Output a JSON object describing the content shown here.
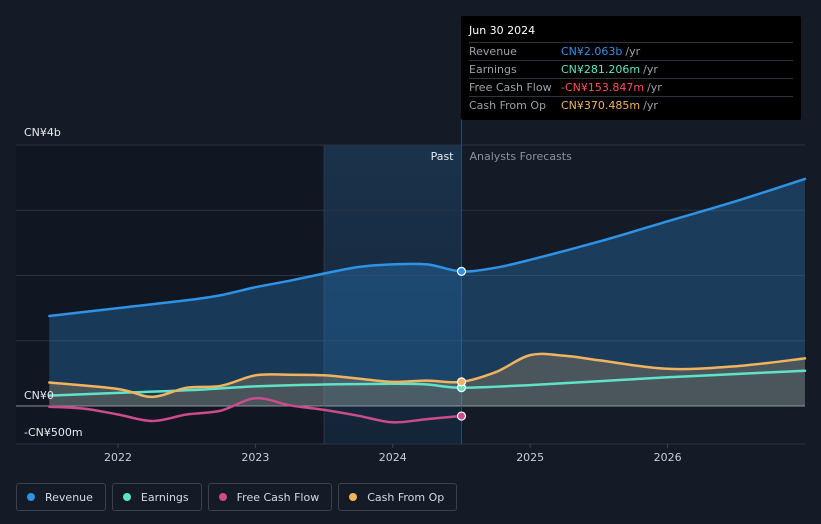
{
  "tooltip": {
    "date": "Jun 30 2024",
    "rows": [
      {
        "name": "Revenue",
        "value": "CN¥2.063b",
        "unit": "/yr",
        "color": "#2e92e6"
      },
      {
        "name": "Earnings",
        "value": "CN¥281.206m",
        "unit": "/yr",
        "color": "#5ee3c9"
      },
      {
        "name": "Free Cash Flow",
        "value": "-CN¥153.847m",
        "unit": "/yr",
        "color": "#ff4d5a"
      },
      {
        "name": "Cash From Op",
        "value": "CN¥370.485m",
        "unit": "/yr",
        "color": "#f0b45f"
      }
    ]
  },
  "legend": [
    {
      "label": "Revenue",
      "color": "#2e92e6"
    },
    {
      "label": "Earnings",
      "color": "#5ee3c9"
    },
    {
      "label": "Free Cash Flow",
      "color": "#cc4b8c"
    },
    {
      "label": "Cash From Op",
      "color": "#f0b45f"
    }
  ],
  "chart_data": {
    "type": "line",
    "y_unit": "CN¥ (millions)",
    "ylim": [
      -500,
      4000
    ],
    "y_tick_labels": [
      {
        "value": 4000,
        "label": "CN¥4b"
      },
      {
        "value": 0,
        "label": "CN¥0"
      },
      {
        "value": -500,
        "label": "-CN¥500m"
      }
    ],
    "gridlines": [
      4000,
      3000,
      2000,
      1000,
      0
    ],
    "xlim": [
      2021.5,
      2027.0
    ],
    "x_ticks": [
      {
        "value": 2022,
        "label": "2022"
      },
      {
        "value": 2023,
        "label": "2023"
      },
      {
        "value": 2024,
        "label": "2024"
      },
      {
        "value": 2025,
        "label": "2025"
      },
      {
        "value": 2026,
        "label": "2026"
      }
    ],
    "divider_x": 2024.5,
    "past_highlight_start": 2023.5,
    "past_label": "Past",
    "forecast_label": "Analysts Forecasts",
    "series": [
      {
        "name": "Revenue",
        "color": "#2e92e6",
        "fill": true,
        "points": [
          [
            2021.5,
            1380
          ],
          [
            2022.0,
            1500
          ],
          [
            2022.5,
            1620
          ],
          [
            2022.75,
            1700
          ],
          [
            2023.0,
            1820
          ],
          [
            2023.25,
            1920
          ],
          [
            2023.5,
            2030
          ],
          [
            2023.75,
            2130
          ],
          [
            2024.0,
            2170
          ],
          [
            2024.25,
            2170
          ],
          [
            2024.5,
            2063
          ],
          [
            2024.75,
            2120
          ],
          [
            2025.0,
            2240
          ],
          [
            2025.5,
            2520
          ],
          [
            2026.0,
            2830
          ],
          [
            2026.5,
            3140
          ],
          [
            2027.0,
            3480
          ]
        ]
      },
      {
        "name": "Earnings",
        "color": "#5ee3c9",
        "points": [
          [
            2021.5,
            160
          ],
          [
            2022.0,
            200
          ],
          [
            2022.5,
            240
          ],
          [
            2023.0,
            300
          ],
          [
            2023.5,
            330
          ],
          [
            2024.0,
            340
          ],
          [
            2024.25,
            330
          ],
          [
            2024.5,
            281
          ],
          [
            2025.0,
            320
          ],
          [
            2025.5,
            380
          ],
          [
            2026.0,
            440
          ],
          [
            2026.5,
            490
          ],
          [
            2027.0,
            540
          ]
        ]
      },
      {
        "name": "Free Cash Flow",
        "color": "#cc4b8c",
        "points": [
          [
            2021.5,
            -10
          ],
          [
            2021.75,
            -40
          ],
          [
            2022.0,
            -130
          ],
          [
            2022.25,
            -230
          ],
          [
            2022.5,
            -130
          ],
          [
            2022.75,
            -70
          ],
          [
            2023.0,
            120
          ],
          [
            2023.25,
            10
          ],
          [
            2023.5,
            -60
          ],
          [
            2023.75,
            -150
          ],
          [
            2024.0,
            -250
          ],
          [
            2024.25,
            -200
          ],
          [
            2024.5,
            -154
          ]
        ]
      },
      {
        "name": "Cash From Op",
        "color": "#f0b45f",
        "fill": true,
        "points": [
          [
            2021.5,
            360
          ],
          [
            2022.0,
            260
          ],
          [
            2022.25,
            140
          ],
          [
            2022.5,
            280
          ],
          [
            2022.75,
            310
          ],
          [
            2023.0,
            470
          ],
          [
            2023.25,
            480
          ],
          [
            2023.5,
            470
          ],
          [
            2023.75,
            420
          ],
          [
            2024.0,
            370
          ],
          [
            2024.25,
            390
          ],
          [
            2024.5,
            370
          ],
          [
            2024.75,
            520
          ],
          [
            2025.0,
            780
          ],
          [
            2025.25,
            770
          ],
          [
            2025.5,
            700
          ],
          [
            2026.0,
            570
          ],
          [
            2026.5,
            610
          ],
          [
            2027.0,
            730
          ]
        ]
      }
    ],
    "highlight_x": 2024.5
  }
}
